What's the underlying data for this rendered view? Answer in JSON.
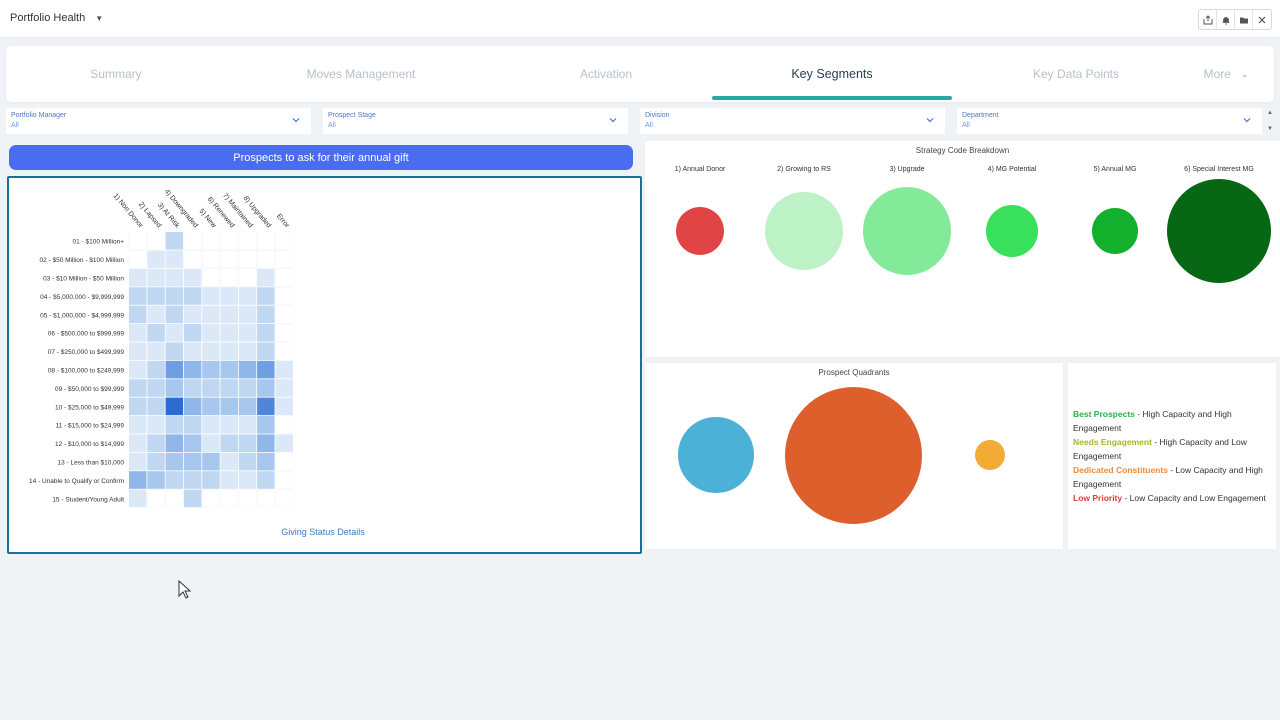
{
  "app": {
    "title": "Portfolio Health"
  },
  "toolbar": {
    "icons": [
      "share-icon",
      "bell-icon",
      "folder-icon",
      "close-icon"
    ]
  },
  "tabs": [
    {
      "label": "Summary",
      "active": false
    },
    {
      "label": "Moves Management",
      "active": false
    },
    {
      "label": "Activation",
      "active": false
    },
    {
      "label": "Key Segments",
      "active": true
    },
    {
      "label": "Key Data Points",
      "active": false
    },
    {
      "label": "More",
      "active": false
    }
  ],
  "filters": [
    {
      "label": "Portfolio Manager",
      "value": "All"
    },
    {
      "label": "Prospect Stage",
      "value": "All"
    },
    {
      "label": "Division",
      "value": "All"
    },
    {
      "label": "Department",
      "value": "All"
    }
  ],
  "ask_button": {
    "label": "Prospects to ask for their annual gift"
  },
  "heatmap": {
    "footer": "Giving Status Details",
    "columns": [
      "1) Non Donor",
      "2) Lapsed",
      "3) At Risk",
      "4) Downgraded",
      "5) New",
      "6) Renewed",
      "7) Maintained",
      "8) Upgraded",
      "Error"
    ],
    "rows": [
      "01 - $100 Million+",
      "02 - $50 Million - $100 Million",
      "03 - $10 Million - $50 Million",
      "04 - $5,000,000 - $9,999,999",
      "05 - $1,000,000 - $4,999,999",
      "06 - $500,000 to $999,999",
      "07 - $250,000 to $499,999",
      "08 - $100,000 to $249,999",
      "09 - $50,000 to $99,999",
      "10 - $25,000 to $49,999",
      "11 - $15,000 to $24,999",
      "12 - $10,000 to $14,999",
      "13 - Less than $10,000",
      "14 - Unable to Qualify or Confirm",
      "15 - Student/Young Adult"
    ],
    "intensity": [
      [
        0,
        0,
        2,
        0,
        0,
        0,
        0,
        0,
        0
      ],
      [
        0,
        1,
        1,
        0,
        0,
        0,
        0,
        0,
        0
      ],
      [
        1,
        1,
        1,
        1,
        0,
        0,
        0,
        1,
        0
      ],
      [
        2,
        2,
        2,
        2,
        1,
        1,
        1,
        2,
        0
      ],
      [
        2,
        1,
        2,
        1,
        1,
        1,
        1,
        2,
        0
      ],
      [
        1,
        2,
        1,
        2,
        1,
        1,
        1,
        2,
        0
      ],
      [
        1,
        1,
        2,
        1,
        1,
        1,
        1,
        2,
        0
      ],
      [
        1,
        2,
        5,
        4,
        3,
        3,
        4,
        5,
        1
      ],
      [
        2,
        2,
        3,
        2,
        2,
        2,
        2,
        3,
        1
      ],
      [
        2,
        2,
        7,
        4,
        3,
        3,
        3,
        6,
        1
      ],
      [
        1,
        1,
        2,
        2,
        1,
        1,
        1,
        3,
        0
      ],
      [
        1,
        2,
        4,
        3,
        1,
        2,
        2,
        4,
        1
      ],
      [
        1,
        2,
        3,
        3,
        3,
        1,
        2,
        3,
        0
      ],
      [
        4,
        3,
        2,
        2,
        2,
        1,
        1,
        2,
        0
      ],
      [
        1,
        0,
        0,
        2,
        0,
        0,
        0,
        0,
        0
      ]
    ]
  },
  "strategy": {
    "title": "Strategy Code Breakdown",
    "bubbles": [
      {
        "label": "1) Annual Donor",
        "relative_size": 0.47,
        "color": "#e04444"
      },
      {
        "label": "2) Growing to RS",
        "relative_size": 0.75,
        "color": "#bdf1c6"
      },
      {
        "label": "3) Upgrade",
        "relative_size": 0.85,
        "color": "#82ea99"
      },
      {
        "label": "4) MG Potential",
        "relative_size": 0.5,
        "color": "#38e05c"
      },
      {
        "label": "5) Annual MG",
        "relative_size": 0.44,
        "color": "#12b02c"
      },
      {
        "label": "6) Special Interest MG",
        "relative_size": 1.0,
        "color": "#076714"
      }
    ]
  },
  "quadrants": {
    "title": "Prospect Quadrants",
    "bubbles": [
      {
        "relative_size": 0.55,
        "color": "#4bb1d6"
      },
      {
        "relative_size": 1.0,
        "color": "#dd5f2c"
      },
      {
        "relative_size": 0.22,
        "color": "#f2ab35"
      }
    ]
  },
  "legend": [
    {
      "key": "Best Prospects",
      "text": " - High Capacity and High Engagement",
      "color": "#2eae4a"
    },
    {
      "key": "Needs Engagement",
      "text": " - High Capacity and Low Engagement",
      "color": "#a8b42a"
    },
    {
      "key": "Dedicated Constituents",
      "text": " - Low Capacity and High Engagement",
      "color": "#f08a35"
    },
    {
      "key": "Low Priority",
      "text": " - Low Capacity and Low Engagement",
      "color": "#dc3b3b"
    }
  ]
}
